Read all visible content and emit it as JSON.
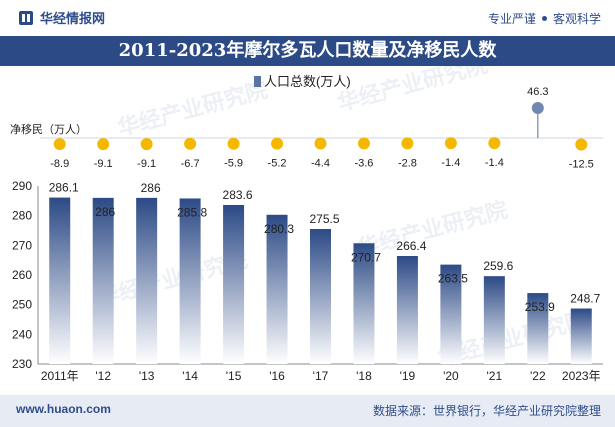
{
  "header": {
    "brand": "华经情报网",
    "slogan_left": "专业严谨",
    "slogan_right": "客观科学",
    "title": "2011-2023年摩尔多瓦人口数量及净移民人数"
  },
  "footer": {
    "url": "www.huaon.com",
    "source": "数据来源：世界银行，华经产业研究院整理"
  },
  "watermark": "华经产业研究院",
  "colors": {
    "brand_blue": "#2c4a86",
    "bar_top": "#2c4a86",
    "bar_bottom": "#ffffff",
    "dot_yellow": "#f5b800",
    "dot_highlight": "#7088b0"
  },
  "chart_data": {
    "type": "bar",
    "categories": [
      "2011年",
      "'12",
      "'13",
      "'14",
      "'15",
      "'16",
      "'17",
      "'18",
      "'19",
      "'20",
      "'21",
      "'22",
      "2023年"
    ],
    "legend": [
      "人口总数(万人)"
    ],
    "series": [
      {
        "name": "人口总数(万人)",
        "values": [
          286.1,
          286,
          286,
          285.8,
          283.6,
          280.3,
          275.5,
          270.7,
          266.4,
          263.5,
          259.6,
          253.9,
          248.7
        ]
      },
      {
        "name": "净移民（万人）",
        "values": [
          -8.9,
          -9.1,
          -9.1,
          -6.7,
          -5.9,
          -5.2,
          -4.4,
          -3.6,
          -2.8,
          -1.4,
          -1.4,
          46.3,
          -12.5
        ]
      }
    ],
    "series_label": "净移民（万人）",
    "y_ticks": [
      230,
      240,
      250,
      260,
      270,
      280,
      290
    ],
    "ylim": [
      230,
      290
    ]
  }
}
